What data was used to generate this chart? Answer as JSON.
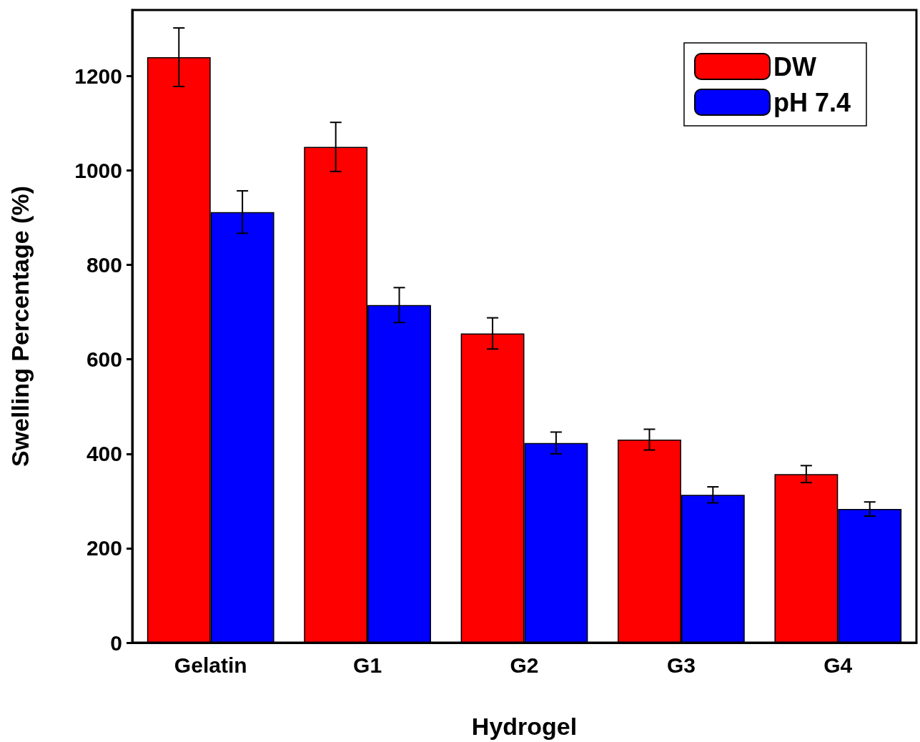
{
  "chart_data": {
    "type": "bar",
    "xlabel": "Hydrogel",
    "ylabel": "Swelling Percentage (%)",
    "categories": [
      "Gelatin",
      "G1",
      "G2",
      "G3",
      "G4"
    ],
    "series": [
      {
        "name": "DW",
        "color": "#ff0000",
        "values": [
          1240,
          1050,
          655,
          430,
          357
        ],
        "errors": [
          62,
          52,
          33,
          22,
          18
        ]
      },
      {
        "name": "pH 7.4",
        "color": "#0000ff",
        "values": [
          912,
          715,
          423,
          313,
          283
        ],
        "errors": [
          45,
          37,
          23,
          17,
          15
        ]
      }
    ],
    "ylim": [
      0,
      1340
    ],
    "yticks": [
      0,
      200,
      400,
      600,
      800,
      1000,
      1200
    ],
    "grid": false,
    "legend": "top right"
  }
}
